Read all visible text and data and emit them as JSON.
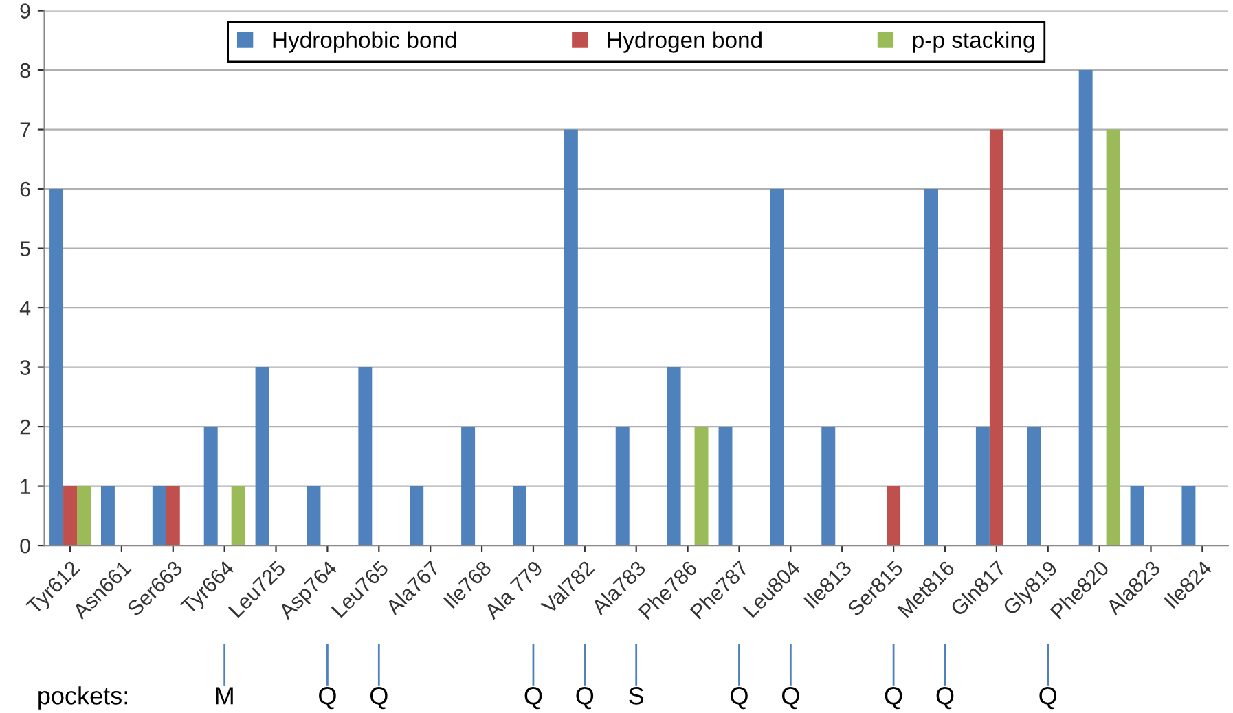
{
  "chart_data": {
    "type": "bar",
    "categories": [
      "Tyr612",
      "Asn661",
      "Ser663",
      "Tyr664",
      "Leu725",
      "Asp764",
      "Leu765",
      "Ala767",
      "Ile768",
      "Ala 779",
      "Val782",
      "Ala783",
      "Phe786",
      "Phe787",
      "Leu804",
      "Ile813",
      "Ser815",
      "Met816",
      "Gln817",
      "Gly819",
      "Phe820",
      "Ala823",
      "Ile824"
    ],
    "series": [
      {
        "name": "Hydrophobic bond",
        "color": "#4f81bd",
        "values": [
          6,
          1,
          1,
          2,
          3,
          1,
          3,
          1,
          2,
          1,
          7,
          2,
          3,
          2,
          6,
          2,
          0,
          6,
          2,
          2,
          8,
          1,
          1
        ]
      },
      {
        "name": "Hydrogen bond",
        "color": "#c0504d",
        "values": [
          1,
          0,
          1,
          0,
          0,
          0,
          0,
          0,
          0,
          0,
          0,
          0,
          0,
          0,
          0,
          0,
          1,
          0,
          7,
          0,
          0,
          0,
          0
        ]
      },
      {
        "name": "p-p stacking",
        "color": "#9bbb59",
        "values": [
          1,
          0,
          0,
          1,
          0,
          0,
          0,
          0,
          0,
          0,
          0,
          0,
          2,
          0,
          0,
          0,
          0,
          0,
          0,
          0,
          7,
          0,
          0
        ]
      }
    ],
    "ylim": [
      0,
      9
    ],
    "yticks": [
      0,
      1,
      2,
      3,
      4,
      5,
      6,
      7,
      8,
      9
    ],
    "grid": "y",
    "legend": "top",
    "annotations": [
      "pockets:",
      {
        "text": "M",
        "x": "Tyr664"
      },
      {
        "text": "Q",
        "x": "Asp764"
      },
      {
        "text": "Q",
        "x": "Leu765"
      },
      {
        "text": "Q",
        "x": "Ala 779"
      },
      {
        "text": "Q",
        "x": "Val782"
      },
      {
        "text": "S",
        "x": "Ala783"
      },
      {
        "text": "Q",
        "x": "Phe787"
      },
      {
        "text": "Q",
        "x": "Leu804"
      },
      {
        "text": "Q",
        "x": "Ser815"
      },
      {
        "text": "Q",
        "x": "Met816"
      },
      {
        "text": "Q",
        "x": "Gly819"
      }
    ]
  }
}
